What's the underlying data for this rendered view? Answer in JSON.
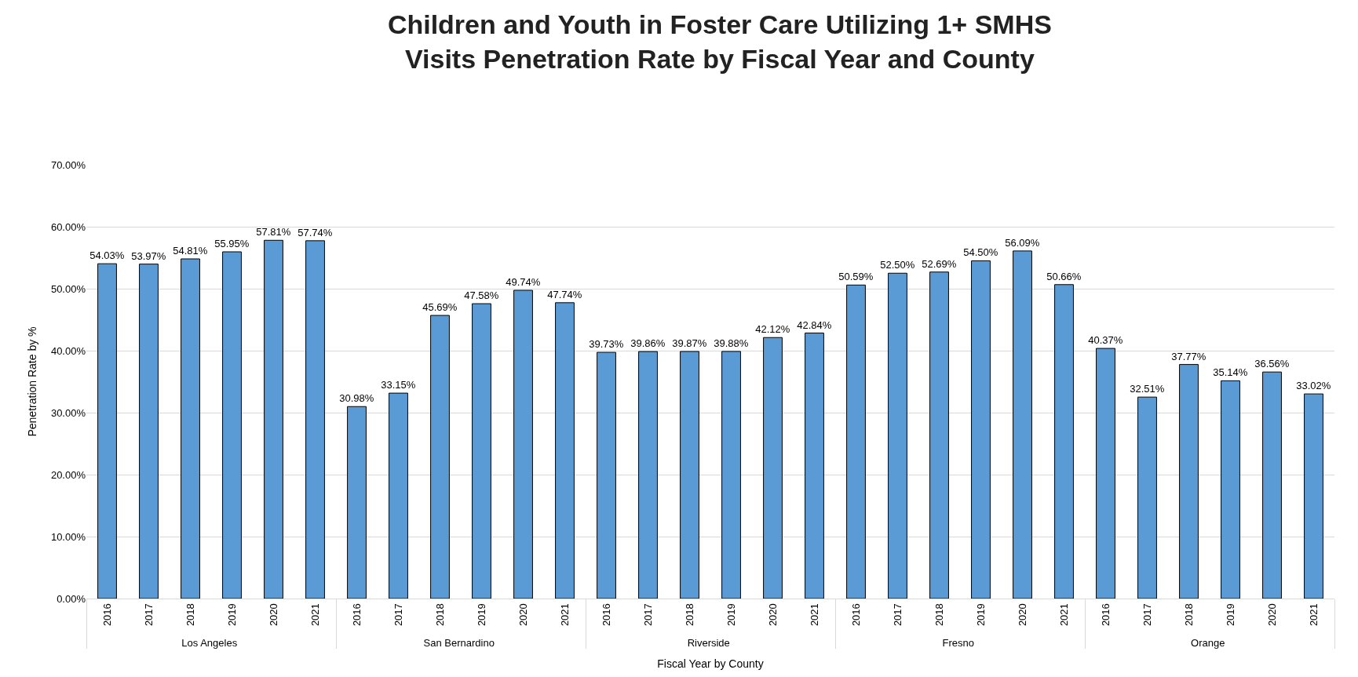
{
  "chart_data": {
    "type": "bar",
    "title": "Children and Youth in Foster Care Utilizing 1+ SMHS\nVisits Penetration Rate by Fiscal Year and County",
    "xlabel": "Fiscal Year by County",
    "ylabel": "Penetration Rate by %",
    "categories": [
      "2016",
      "2017",
      "2018",
      "2019",
      "2020",
      "2021",
      "2016",
      "2017",
      "2018",
      "2019",
      "2020",
      "2021",
      "2016",
      "2017",
      "2018",
      "2019",
      "2020",
      "2021",
      "2016",
      "2017",
      "2018",
      "2019",
      "2020",
      "2021",
      "2016",
      "2017",
      "2018",
      "2019",
      "2020",
      "2021"
    ],
    "annotations": [
      "Los Angeles",
      "San Bernardino",
      "Riverside",
      "Fresno",
      "Orange"
    ],
    "values": [
      54.03,
      53.97,
      54.81,
      55.95,
      57.81,
      57.74,
      30.98,
      33.15,
      45.69,
      47.58,
      49.74,
      47.74,
      39.73,
      39.86,
      39.87,
      39.88,
      42.12,
      42.84,
      50.59,
      52.5,
      52.69,
      54.5,
      56.09,
      50.66,
      40.37,
      32.51,
      37.77,
      35.14,
      36.56,
      33.02
    ],
    "value_labels": [
      "54.03%",
      "53.97%",
      "54.81%",
      "55.95%",
      "57.81%",
      "57.74%",
      "30.98%",
      "33.15%",
      "45.69%",
      "47.58%",
      "49.74%",
      "47.74%",
      "39.73%",
      "39.86%",
      "39.87%",
      "39.88%",
      "42.12%",
      "42.84%",
      "50.59%",
      "52.50%",
      "52.69%",
      "54.50%",
      "56.09%",
      "50.66%",
      "40.37%",
      "32.51%",
      "37.77%",
      "35.14%",
      "36.56%",
      "33.02%"
    ],
    "color": "#5b9bd5",
    "ylim": [
      0,
      70
    ],
    "yticks": [
      {
        "value": 0,
        "label": "0.00%"
      },
      {
        "value": 10,
        "label": "10.00%"
      },
      {
        "value": 20,
        "label": "20.00%"
      },
      {
        "value": 30,
        "label": "30.00%"
      },
      {
        "value": 40,
        "label": "40.00%"
      },
      {
        "value": 50,
        "label": "50.00%"
      },
      {
        "value": 60,
        "label": "60.00%"
      },
      {
        "value": 70,
        "label": "70.00%"
      }
    ],
    "grid": "y",
    "legend": false
  }
}
